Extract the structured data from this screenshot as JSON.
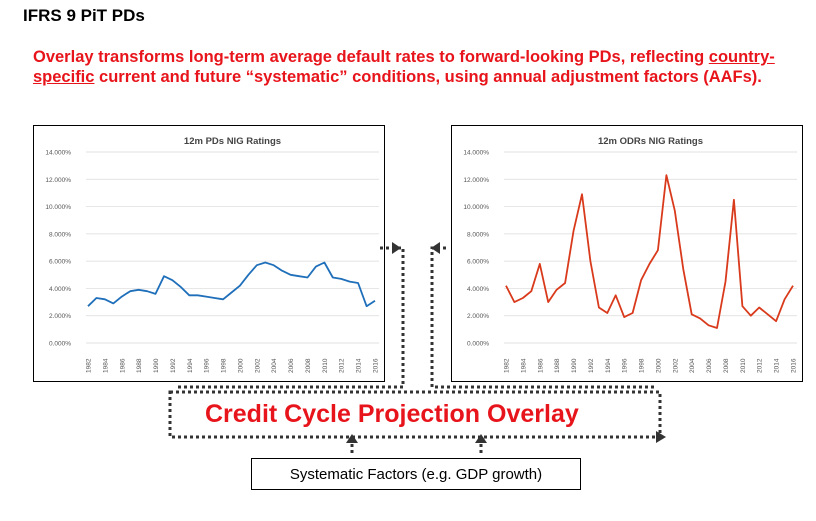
{
  "slide": {
    "title": "IFRS 9 PiT PDs",
    "intro_before": "Overlay transforms long-term average default rates to forward-looking PDs, reflecting ",
    "intro_underlined": "country-specific",
    "intro_after": " current and future “systematic” conditions, using annual adjustment factors (AAFs).",
    "overlay_label": "Credit Cycle Projection Overlay",
    "factors_label": "Systematic Factors (e.g. GDP growth)"
  },
  "colors": {
    "accent_red": "#e8141b",
    "pd_line": "#1f6fba",
    "odr_line": "#d93a1c",
    "connector": "#333333"
  },
  "chart_data": [
    {
      "type": "line",
      "title": "12m PDs NIG Ratings",
      "xlabel": "",
      "ylabel": "",
      "ylim": [
        0,
        0.14
      ],
      "yticks": [
        "0.000%",
        "2.000%",
        "4.000%",
        "6.000%",
        "8.000%",
        "10.000%",
        "12.000%",
        "14.000%"
      ],
      "xticks": [
        "1982",
        "1984",
        "1986",
        "1988",
        "1990",
        "1992",
        "1994",
        "1996",
        "1998",
        "2000",
        "2002",
        "2004",
        "2006",
        "2008",
        "2010",
        "2012",
        "2014",
        "2016"
      ],
      "grid": true,
      "x": [
        1982,
        1983,
        1984,
        1985,
        1986,
        1987,
        1988,
        1989,
        1990,
        1991,
        1992,
        1993,
        1994,
        1995,
        1996,
        1997,
        1998,
        1999,
        2000,
        2001,
        2002,
        2003,
        2004,
        2005,
        2006,
        2007,
        2008,
        2009,
        2010,
        2011,
        2012,
        2013,
        2014,
        2015,
        2016
      ],
      "series": [
        {
          "values": [
            0.027,
            0.033,
            0.032,
            0.029,
            0.034,
            0.038,
            0.039,
            0.038,
            0.036,
            0.049,
            0.046,
            0.041,
            0.035,
            0.035,
            0.034,
            0.033,
            0.032,
            0.037,
            0.042,
            0.05,
            0.057,
            0.059,
            0.057,
            0.053,
            0.05,
            0.049,
            0.048,
            0.056,
            0.059,
            0.048,
            0.047,
            0.045,
            0.044,
            0.027,
            0.031
          ]
        }
      ]
    },
    {
      "type": "line",
      "title": "12m ODRs NIG Ratings",
      "xlabel": "",
      "ylabel": "",
      "ylim": [
        0,
        0.14
      ],
      "yticks": [
        "0.000%",
        "2.000%",
        "4.000%",
        "6.000%",
        "8.000%",
        "10.000%",
        "12.000%",
        "14.000%"
      ],
      "xticks": [
        "1982",
        "1984",
        "1986",
        "1988",
        "1990",
        "1992",
        "1994",
        "1996",
        "1998",
        "2000",
        "2002",
        "2004",
        "2006",
        "2008",
        "2010",
        "2012",
        "2014",
        "2016"
      ],
      "grid": true,
      "x": [
        1982,
        1983,
        1984,
        1985,
        1986,
        1987,
        1988,
        1989,
        1990,
        1991,
        1992,
        1993,
        1994,
        1995,
        1996,
        1997,
        1998,
        1999,
        2000,
        2001,
        2002,
        2003,
        2004,
        2005,
        2006,
        2007,
        2008,
        2009,
        2010,
        2011,
        2012,
        2013,
        2014,
        2015,
        2016
      ],
      "series": [
        {
          "values": [
            0.042,
            0.03,
            0.033,
            0.038,
            0.058,
            0.03,
            0.039,
            0.044,
            0.082,
            0.109,
            0.06,
            0.026,
            0.022,
            0.035,
            0.019,
            0.022,
            0.046,
            0.058,
            0.068,
            0.123,
            0.097,
            0.054,
            0.021,
            0.018,
            0.013,
            0.011,
            0.045,
            0.105,
            0.027,
            0.02,
            0.026,
            0.021,
            0.016,
            0.032,
            0.042
          ]
        }
      ]
    }
  ]
}
